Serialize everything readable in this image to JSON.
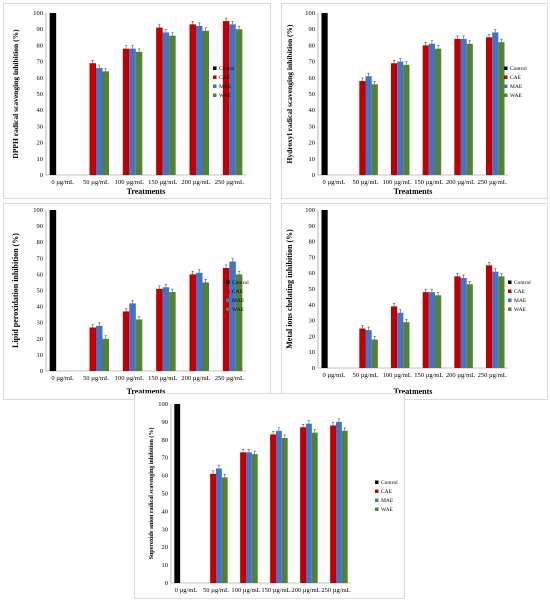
{
  "chart_data": [
    {
      "type": "bar",
      "title": "",
      "ylabel": "DPPH radical scavenging inhibition (%)",
      "xlabel": "Treatments",
      "categories": [
        "0 µg/mL",
        "50 µg/mL",
        "100 µg/mL",
        "150 µg/mL",
        "200 µg/mL",
        "250 µg/mL"
      ],
      "ylim": [
        0,
        100
      ],
      "ytick_step": 10,
      "legend_position": "right",
      "series": [
        {
          "name": "Contro",
          "color": "#000000",
          "values": [
            100,
            0,
            0,
            0,
            0,
            0
          ]
        },
        {
          "name": "CAE",
          "color": "#c00000",
          "values": [
            0,
            69,
            78,
            91,
            93,
            95
          ]
        },
        {
          "name": "MAE",
          "color": "#4472c4",
          "values": [
            0,
            66,
            78,
            88,
            92,
            93
          ]
        },
        {
          "name": "WAE",
          "color": "#548235",
          "values": [
            0,
            64,
            76,
            86,
            89,
            90
          ]
        }
      ]
    },
    {
      "type": "bar",
      "title": "",
      "ylabel": "Hydroxyl radical scavenging inhibition (%)",
      "xlabel": "Treatments",
      "categories": [
        "0 µg/mL",
        "50 µg/mL",
        "100 µg/mL",
        "150 µg/mL",
        "200 µg/mL",
        "250 µg/mL"
      ],
      "ylim": [
        0,
        100
      ],
      "ytick_step": 10,
      "legend_position": "right",
      "series": [
        {
          "name": "Control",
          "color": "#000000",
          "values": [
            100,
            0,
            0,
            0,
            0,
            0
          ]
        },
        {
          "name": "CAE",
          "color": "#c00000",
          "values": [
            0,
            58,
            69,
            80,
            84,
            85
          ]
        },
        {
          "name": "MAE",
          "color": "#4472c4",
          "values": [
            0,
            61,
            70,
            81,
            84,
            88
          ]
        },
        {
          "name": "WAE",
          "color": "#548235",
          "values": [
            0,
            56,
            68,
            78,
            81,
            82
          ]
        }
      ]
    },
    {
      "type": "bar",
      "title": "",
      "ylabel": "Lipid peroxidation inhibition (%)",
      "xlabel": "Treatments",
      "categories": [
        "0 µg/mL",
        "50 µg/mL",
        "100 µg/mL",
        "150 µg/mL",
        "200 µg/mL",
        "250 µg/mL"
      ],
      "ylim": [
        0,
        100
      ],
      "ytick_step": 10,
      "legend_position": "right",
      "series": [
        {
          "name": "Control",
          "color": "#000000",
          "values": [
            100,
            0,
            0,
            0,
            0,
            0
          ]
        },
        {
          "name": "CAE",
          "color": "#c00000",
          "values": [
            0,
            27,
            37,
            51,
            60,
            64
          ]
        },
        {
          "name": "MAE",
          "color": "#4472c4",
          "values": [
            0,
            28,
            42,
            52,
            61,
            68
          ]
        },
        {
          "name": "WAE",
          "color": "#548235",
          "values": [
            0,
            20,
            32,
            49,
            55,
            60
          ]
        }
      ]
    },
    {
      "type": "bar",
      "title": "",
      "ylabel": "Metal ions chelating inhibition (%)",
      "xlabel": "Treatments",
      "categories": [
        "0 µg/mL",
        "50 µg/mL",
        "100 µg/mL",
        "150 µg/mL",
        "200 µg/mL",
        "250 µg/mL"
      ],
      "ylim": [
        0,
        100
      ],
      "ytick_step": 10,
      "legend_position": "right",
      "series": [
        {
          "name": "Control",
          "color": "#000000",
          "values": [
            100,
            0,
            0,
            0,
            0,
            0
          ]
        },
        {
          "name": "CAE",
          "color": "#c00000",
          "values": [
            0,
            25,
            39,
            48,
            58,
            65
          ]
        },
        {
          "name": "MAE",
          "color": "#4472c4",
          "values": [
            0,
            24,
            35,
            48,
            57,
            61
          ]
        },
        {
          "name": "WAE",
          "color": "#548235",
          "values": [
            0,
            18,
            29,
            46,
            53,
            58
          ]
        }
      ]
    },
    {
      "type": "bar",
      "title": "",
      "ylabel": "Superoxide anion radical scavenging inhibition (%)",
      "xlabel": "",
      "categories": [
        "0 µg/mL",
        "50 µg/mL",
        "100 µg/mL",
        "150 µg/mL",
        "200 µg/mL",
        "250 µg/mL"
      ],
      "ylim": [
        0,
        100
      ],
      "ytick_step": 10,
      "legend_position": "right",
      "series": [
        {
          "name": "Control",
          "color": "#000000",
          "values": [
            100,
            0,
            0,
            0,
            0,
            0
          ]
        },
        {
          "name": "CAE",
          "color": "#c00000",
          "values": [
            0,
            61,
            73,
            83,
            87,
            88
          ]
        },
        {
          "name": "MAE",
          "color": "#4472c4",
          "values": [
            0,
            64,
            73,
            85,
            89,
            90
          ]
        },
        {
          "name": "WAE",
          "color": "#548235",
          "values": [
            0,
            59,
            72,
            81,
            84,
            85
          ]
        }
      ]
    }
  ]
}
